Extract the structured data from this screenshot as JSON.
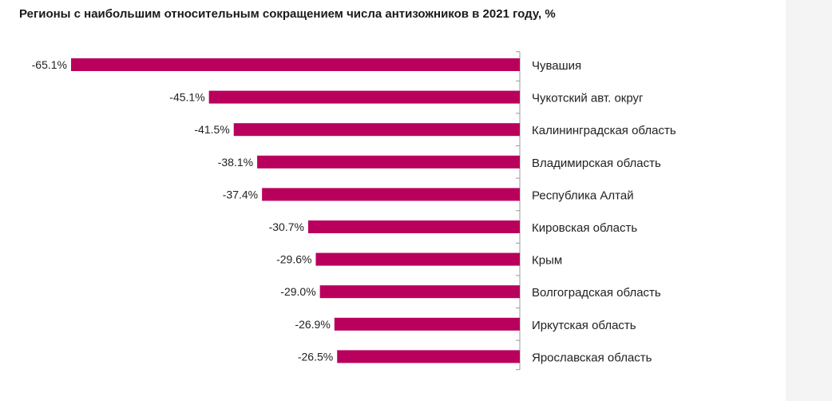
{
  "chart_data": {
    "type": "bar",
    "orientation": "horizontal",
    "title": "Регионы с наибольшим относительным сокращением числа антизожников в 2021 году, %",
    "xlabel": "",
    "ylabel": "",
    "value_labels": [
      "-65.1%",
      "-45.1%",
      "-41.5%",
      "-38.1%",
      "-37.4%",
      "-30.7%",
      "-29.6%",
      "-29.0%",
      "-26.9%",
      "-26.5%"
    ],
    "categories": [
      "Чувашия",
      "Чукотский авт. округ",
      "Калининградская область",
      "Владимирская область",
      "Республика Алтай",
      "Кировская область",
      "Крым",
      "Волгоградская область",
      "Иркутская область",
      "Ярославская область"
    ],
    "values": [
      -65.1,
      -45.1,
      -41.5,
      -38.1,
      -37.4,
      -30.7,
      -29.6,
      -29.0,
      -26.9,
      -26.5
    ],
    "xlim": [
      -65.1,
      0
    ],
    "grid": false,
    "legend": "none",
    "bar_color": "#b9005c"
  }
}
